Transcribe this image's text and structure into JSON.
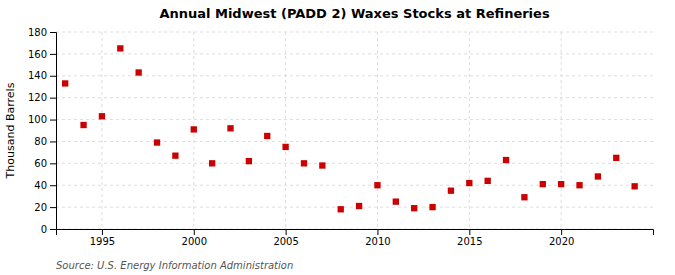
{
  "chart_data": {
    "type": "scatter",
    "title": "Annual Midwest (PADD 2) Waxes Stocks at Refineries",
    "y_label": "Thousand Barrels",
    "annotation": "Source: U.S. Energy Information Administration",
    "x": [
      1993,
      1994,
      1995,
      1996,
      1997,
      1998,
      1999,
      2000,
      2001,
      2002,
      2003,
      2004,
      2005,
      2006,
      2007,
      2008,
      2009,
      2010,
      2011,
      2012,
      2013,
      2014,
      2015,
      2016,
      2017,
      2018,
      2019,
      2020,
      2021,
      2022,
      2023,
      2024
    ],
    "values": [
      133,
      95,
      103,
      165,
      143,
      79,
      67,
      91,
      60,
      92,
      62,
      85,
      75,
      60,
      58,
      18,
      21,
      40,
      25,
      19,
      20,
      35,
      42,
      44,
      63,
      29,
      41,
      41,
      40,
      48,
      65,
      39
    ],
    "color": "#cc0000",
    "marker": "square",
    "xlim": [
      1992.5,
      2025
    ],
    "xticks": [
      1995,
      2000,
      2005,
      2010,
      2015,
      2020
    ],
    "ylim": [
      0,
      180
    ],
    "yticks": [
      0,
      20,
      40,
      60,
      80,
      100,
      120,
      140,
      160,
      180
    ],
    "grid": true
  }
}
